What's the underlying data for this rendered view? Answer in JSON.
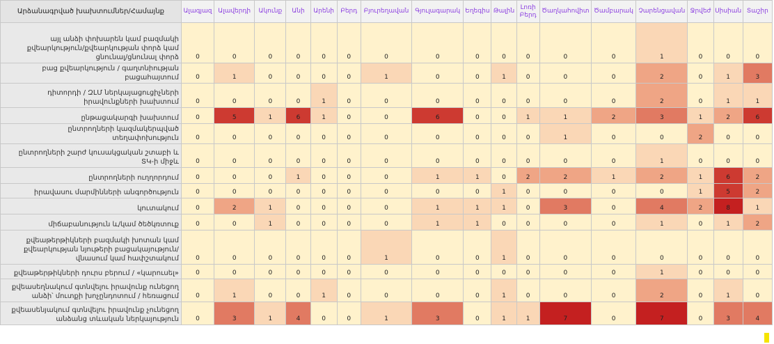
{
  "corner_label": "Արձանագրված խախտումներ/Համայնք",
  "columns": [
    "Ալագյազ",
    "Ալավերդի",
    "Ակունք",
    "Անի",
    "Արենի",
    "Բերդ",
    "Բյուրեղավան",
    "Գյուլագարակ",
    "Եղեգիս",
    "Թալին",
    "Լոռի Բերդ",
    "Ծաղկահովիտ",
    "Ծամբարակ",
    "Չարենցավան",
    "Ջրվեժ",
    "Սիսիան",
    "Տաշիր"
  ],
  "rows": [
    {
      "label": "այլ անձի փոխարեն կամ բազմակի քվեարկություն/քվեարկության փորձ կամ ցնունալ/ցնունալ փորձ",
      "values": [
        0,
        0,
        0,
        0,
        0,
        0,
        0,
        0,
        0,
        0,
        0,
        0,
        0,
        1,
        0,
        0,
        0
      ]
    },
    {
      "label": "բաց քվեարկություն / գաղտնիության բացահայտում",
      "values": [
        0,
        1,
        0,
        0,
        0,
        0,
        1,
        0,
        0,
        1,
        0,
        0,
        0,
        2,
        0,
        1,
        3
      ]
    },
    {
      "label": "դիտորդի / ԶԼՄ ներկայացուցիչների իրավունքների խախտում",
      "values": [
        0,
        0,
        0,
        0,
        1,
        0,
        0,
        0,
        0,
        0,
        0,
        0,
        0,
        2,
        0,
        1,
        1
      ]
    },
    {
      "label": "ընթացակարգի խախտում",
      "values": [
        0,
        5,
        1,
        6,
        1,
        0,
        0,
        6,
        0,
        0,
        1,
        1,
        2,
        3,
        1,
        2,
        6
      ]
    },
    {
      "label": "ընտրողների կազմակերպված տեղափոխություն",
      "values": [
        0,
        0,
        0,
        0,
        0,
        0,
        0,
        0,
        0,
        0,
        0,
        1,
        0,
        0,
        2,
        0,
        0
      ]
    },
    {
      "label": "ընտրողների շարժ կուսակցական շտաբի և ՏԿ-ի միջև",
      "values": [
        0,
        0,
        0,
        0,
        0,
        0,
        0,
        0,
        0,
        0,
        0,
        0,
        0,
        1,
        0,
        0,
        0
      ]
    },
    {
      "label": "ընտրողների ուղղորդում",
      "values": [
        0,
        0,
        0,
        1,
        0,
        0,
        0,
        1,
        1,
        0,
        2,
        2,
        1,
        2,
        1,
        6,
        2
      ]
    },
    {
      "label": "իրավասու մարմինների անգործություն",
      "values": [
        0,
        0,
        0,
        0,
        0,
        0,
        0,
        0,
        0,
        1,
        0,
        0,
        0,
        0,
        1,
        5,
        2
      ]
    },
    {
      "label": "կուտակում",
      "values": [
        0,
        2,
        1,
        0,
        0,
        0,
        0,
        1,
        1,
        1,
        0,
        3,
        0,
        4,
        2,
        8,
        1
      ]
    },
    {
      "label": "միճաբանություն և/կամ ծեծկռտուք",
      "values": [
        0,
        0,
        1,
        0,
        0,
        0,
        0,
        1,
        1,
        0,
        0,
        0,
        0,
        1,
        0,
        1,
        2
      ]
    },
    {
      "label": "քվեաթերթիկների բազմակի խոտան կամ քվեարկության նյութերի բացակայություն/վնասում կամ հափշտակում",
      "values": [
        0,
        0,
        0,
        0,
        0,
        0,
        1,
        0,
        0,
        1,
        0,
        0,
        0,
        0,
        0,
        0,
        0
      ]
    },
    {
      "label": "քվեաթերթիկների դուրս բերում / «կարուսել»",
      "values": [
        0,
        0,
        0,
        0,
        0,
        0,
        0,
        0,
        0,
        0,
        0,
        0,
        0,
        1,
        0,
        0,
        0
      ]
    },
    {
      "label": "քվեասեղնակում գտնվելու իրավունք ունեցող անձի՝ մուտքի խոչընդոտում / հեռացում",
      "values": [
        0,
        1,
        0,
        0,
        1,
        0,
        0,
        0,
        0,
        1,
        0,
        0,
        0,
        2,
        0,
        1,
        0
      ]
    },
    {
      "label": "քվեասենյակում գտնվելու իրավունք չունեցող անձանց տևական ներկայություն",
      "values": [
        0,
        3,
        1,
        4,
        0,
        0,
        1,
        3,
        0,
        1,
        1,
        7,
        0,
        7,
        0,
        3,
        4
      ]
    }
  ],
  "scale_colors": [
    "#fff2cc",
    "#fad7b6",
    "#f7c3a0",
    "#efa585",
    "#e17a62",
    "#cd3a31",
    "#c42020"
  ]
}
